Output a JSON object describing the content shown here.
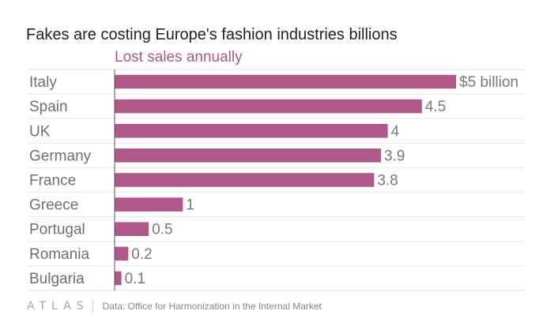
{
  "title": "Fakes are costing Europe's fashion industries billions",
  "subtitle": "Lost sales annually",
  "footer": {
    "logo": "ATLAS",
    "source": "Data: Office for Harmonization in the Internal Market"
  },
  "colors": {
    "bar": "#b0588a",
    "subtitle": "#b0588a",
    "label": "#6f6f6f",
    "value": "#7a7a7a",
    "grid": "#e6e6e6",
    "axis": "#555555"
  },
  "chart_data": {
    "type": "bar",
    "orientation": "horizontal",
    "title": "Fakes are costing Europe's fashion industries billions",
    "subtitle": "Lost sales annually",
    "categories": [
      "Italy",
      "Spain",
      "UK",
      "Germany",
      "France",
      "Greece",
      "Portugal",
      "Romania",
      "Bulgaria"
    ],
    "values": [
      5,
      4.5,
      4,
      3.9,
      3.8,
      1,
      0.5,
      0.2,
      0.1
    ],
    "value_labels": [
      "$5 billion",
      "4.5",
      "4",
      "3.9",
      "3.8",
      "1",
      "0.5",
      "0.2",
      "0.1"
    ],
    "xlim": [
      0,
      5
    ],
    "grid": true,
    "legend": "none"
  }
}
